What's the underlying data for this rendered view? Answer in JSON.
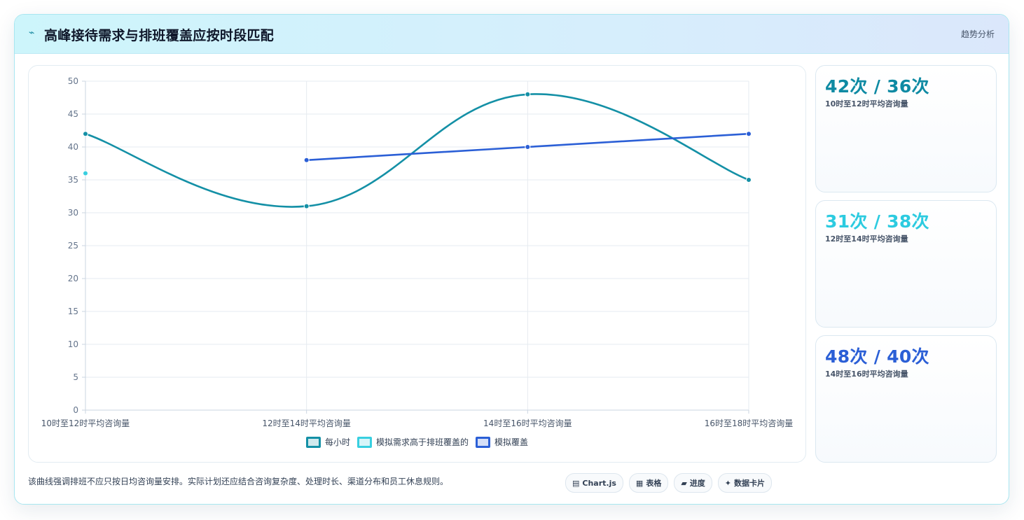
{
  "header": {
    "icon": "trend-icon",
    "title": "高峰接待需求与排班覆盖应按时段匹配",
    "badge": "趋势分析"
  },
  "chart_data": {
    "type": "line",
    "categories": [
      "10时至12时平均咨询量",
      "12时至14时平均咨询量",
      "14时至16时平均咨询量",
      "16时至18时平均咨询量"
    ],
    "ylim": [
      0,
      50
    ],
    "yticks": [
      "0",
      "5",
      "10",
      "15",
      "20",
      "25",
      "30",
      "35",
      "40",
      "45",
      "50"
    ],
    "grid": true,
    "legend_position": "bottom",
    "series": [
      {
        "name": "每小时",
        "color": "#1490a6",
        "values": [
          42,
          31,
          48,
          35
        ],
        "smooth": true
      },
      {
        "name": "模拟需求高于排班覆盖的",
        "color": "#38cfe0",
        "values": [
          36,
          null,
          null,
          null
        ],
        "smooth": false
      },
      {
        "name": "模拟覆盖",
        "color": "#2b5fd6",
        "values": [
          null,
          38,
          40,
          42
        ],
        "smooth": false
      }
    ]
  },
  "stats": [
    {
      "value": "42次 / 36次",
      "label": "10时至12时平均咨询量",
      "color": "#0e8aa3"
    },
    {
      "value": "31次 / 38次",
      "label": "12时至14时平均咨询量",
      "color": "#2ccbe0"
    },
    {
      "value": "48次 / 40次",
      "label": "14时至16时平均咨询量",
      "color": "#2b5fd6"
    }
  ],
  "footer": {
    "note": "该曲线强调排班不应只按日均咨询量安排。实际计划还应结合咨询复杂度、处理时长、渠道分布和员工休息规则。",
    "tags": [
      {
        "icon": "chart-icon",
        "glyph": "▤",
        "label": "Chart.js"
      },
      {
        "icon": "table-icon",
        "glyph": "▦",
        "label": "表格"
      },
      {
        "icon": "progress-icon",
        "glyph": "▰",
        "label": "进度"
      },
      {
        "icon": "card-icon",
        "glyph": "✦",
        "label": "数据卡片"
      }
    ]
  }
}
